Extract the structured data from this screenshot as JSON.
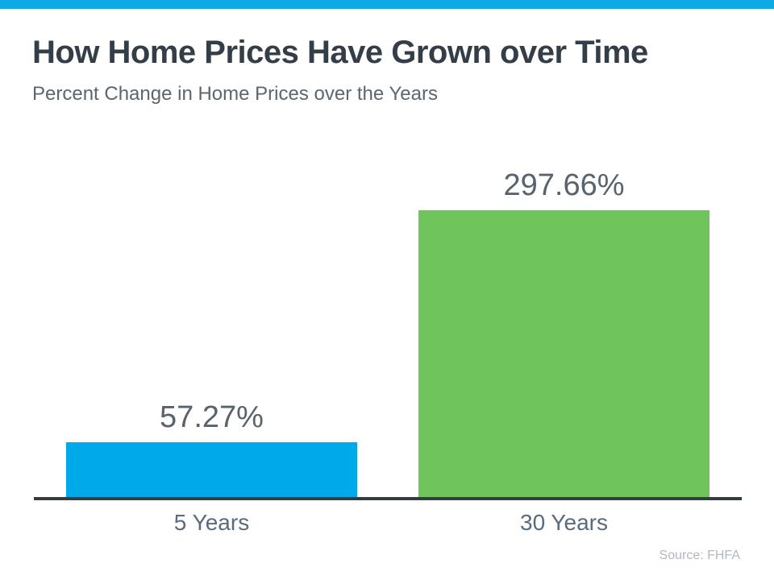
{
  "page": {
    "accent_strip_color": "#0fa9e8"
  },
  "colors": {
    "title": "#333e48",
    "subtitle": "#5a6670",
    "value_label": "#57636f",
    "category_label": "#5a6b7b",
    "axis": "#323c41",
    "source": "#b1b9c0"
  },
  "chart_data": {
    "type": "bar",
    "title": "How Home Prices Have Grown over Time",
    "subtitle": "Percent Change in Home Prices over the Years",
    "categories": [
      "5 Years",
      "30 Years"
    ],
    "values": [
      57.27,
      297.66
    ],
    "value_labels": [
      "57.27%",
      "297.66%"
    ],
    "bar_colors": [
      "#00a9e9",
      "#6fc45c"
    ],
    "ylabel": "",
    "xlabel": "",
    "ylim": [
      0,
      310
    ],
    "grid": false,
    "legend": false,
    "source": "Source: FHFA"
  }
}
